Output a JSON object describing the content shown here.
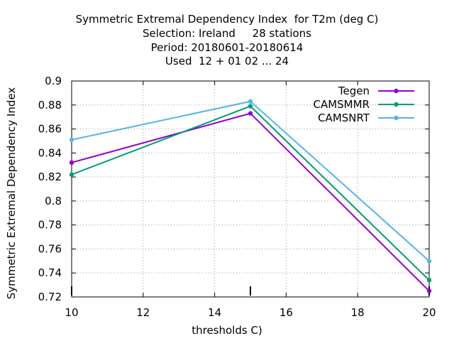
{
  "title_lines": [
    "Symmetric Extremal Dependency Index  for T2m (deg C)",
    "Selection: Ireland     28 stations",
    "Period: 20180601-20180614",
    "Used  12 + 01 02 ... 24"
  ],
  "chart_data": {
    "type": "line",
    "title": "Symmetric Extremal Dependency Index  for T2m (deg C)",
    "xlabel": "thresholds C)",
    "ylabel": "Symmetric Extremal Dependency Index",
    "xlim": [
      10,
      20
    ],
    "ylim": [
      0.72,
      0.9
    ],
    "x_ticks": [
      "10",
      "12",
      "14",
      "16",
      "18",
      "20"
    ],
    "y_ticks": [
      "0.72",
      "0.74",
      "0.76",
      "0.78",
      "0.8",
      "0.82",
      "0.84",
      "0.86",
      "0.88",
      "0.9"
    ],
    "grid": true,
    "legend_position": "top-right",
    "x": [
      10,
      15,
      20
    ],
    "series": [
      {
        "name": "Tegen",
        "color": "#9400d3",
        "marker": "filled-circle",
        "values": [
          0.832,
          0.873,
          0.725
        ]
      },
      {
        "name": "CAMSMMR",
        "color": "#009e73",
        "marker": "filled-circle",
        "values": [
          0.822,
          0.879,
          0.734
        ]
      },
      {
        "name": "CAMSNRT",
        "color": "#56b4e9",
        "marker": "filled-circle",
        "values": [
          0.851,
          0.883,
          0.75
        ]
      }
    ],
    "count_marks_x": [
      10,
      15,
      20
    ]
  }
}
